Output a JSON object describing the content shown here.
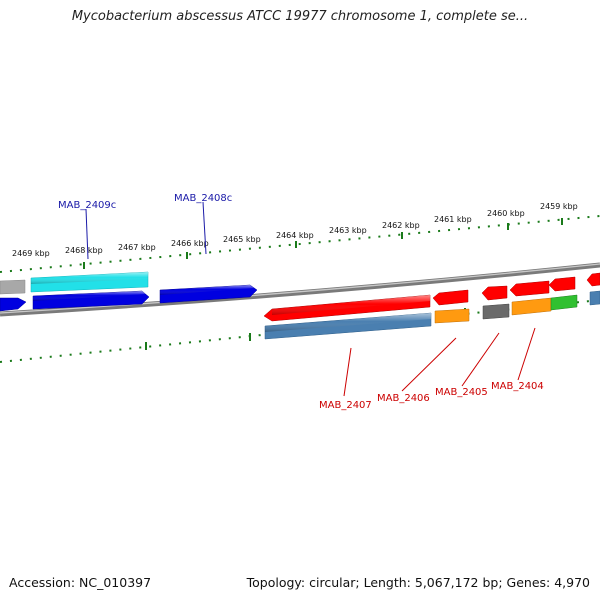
{
  "title": "Mycobacterium abscessus ATCC 19977 chromosome 1, complete se...",
  "footer": {
    "accession": "Accession: NC_010397",
    "summary": "Topology: circular; Length: 5,067,172 bp; Genes: 4,970"
  },
  "scale_labels": [
    "2469 kbp",
    "2468 kbp",
    "2467 kbp",
    "2466 kbp",
    "2465 kbp",
    "2464 kbp",
    "2463 kbp",
    "2462 kbp",
    "2461 kbp",
    "2460 kbp",
    "2459 kbp"
  ],
  "genes": {
    "forward": [
      "MAB_2409c",
      "MAB_2408c"
    ],
    "reverse": [
      "MAB_2407",
      "MAB_2406",
      "MAB_2405",
      "MAB_2404"
    ]
  },
  "colors": {
    "forward_label": "#1a1aa8",
    "reverse_label": "#cc0000",
    "tick": "#1a7a1a",
    "backbone": "#8a8a8a",
    "blue_feature": "#0000e0",
    "cyan_feature": "#22e0e8",
    "red_feature": "#ff0000",
    "steelblue_feature": "#4a7fb0",
    "orange_feature": "#ff9a10",
    "gray_feature": "#6a6a6a",
    "green_feature": "#30c030"
  }
}
